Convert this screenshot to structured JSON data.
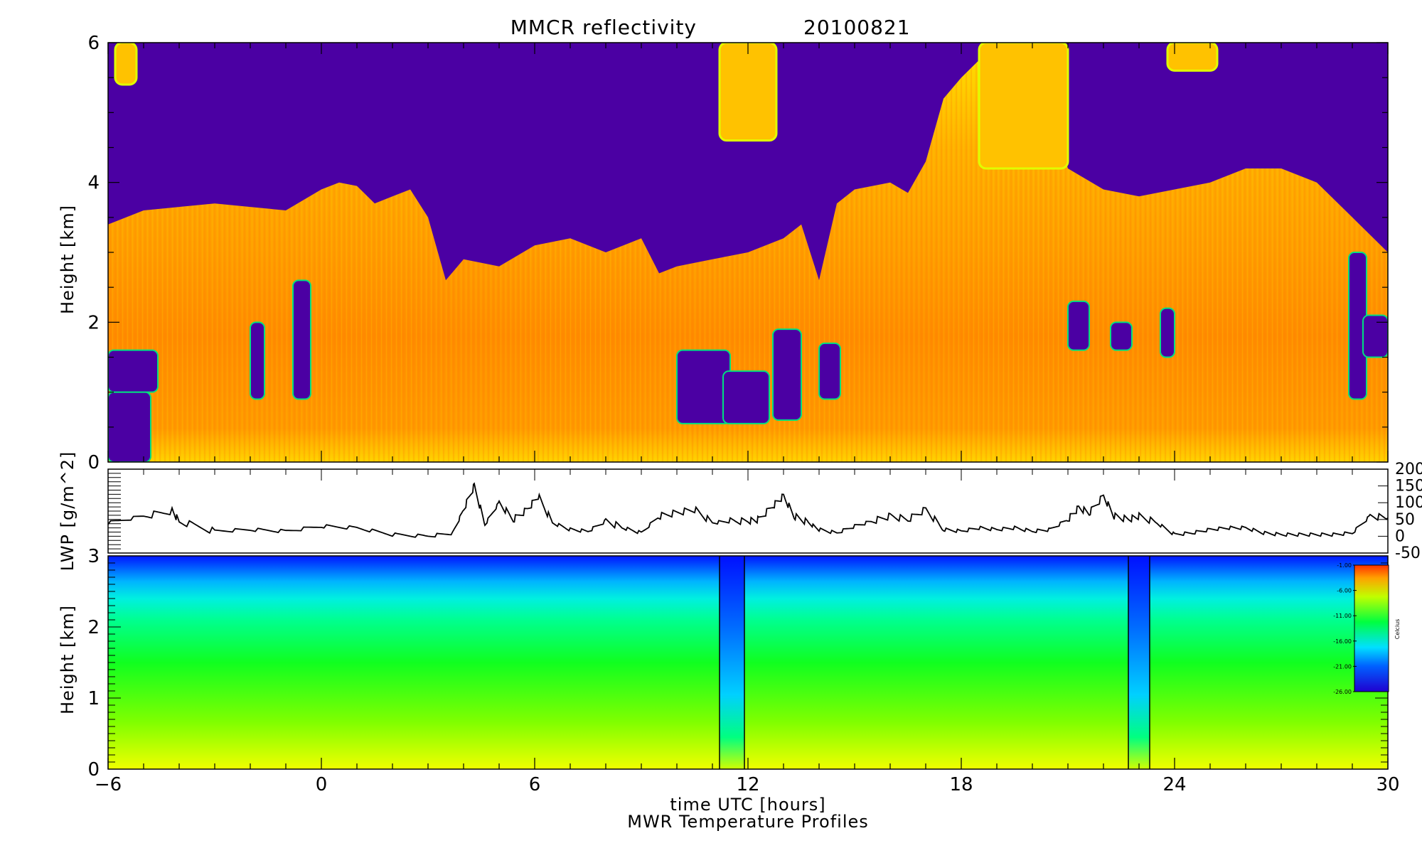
{
  "figure": {
    "title_left": "MMCR reflectivity",
    "title_right": "20100821",
    "x_axis_label": "time UTC [hours]",
    "bottom_caption": "MWR Temperature Profiles"
  },
  "colors": {
    "reflectivity_background": "#4b00a3",
    "temperature_cold": "#0014ff",
    "temperature_warm": "#f0ff00"
  },
  "chart_data": [
    {
      "type": "heatmap",
      "name": "reflectivity",
      "title": "MMCR reflectivity 20100821",
      "xlabel": "time UTC [hours]",
      "ylabel": "Height [km]",
      "xlim": [
        -6,
        30
      ],
      "ylim": [
        0,
        6
      ],
      "x_ticks": [
        -6,
        0,
        6,
        12,
        18,
        24,
        30
      ],
      "y_ticks": [
        0,
        2,
        4,
        6
      ],
      "cloud_top_km": [
        [
          -6,
          3.4
        ],
        [
          -5,
          3.6
        ],
        [
          -4,
          3.65
        ],
        [
          -3,
          3.7
        ],
        [
          -2,
          3.65
        ],
        [
          -1,
          3.6
        ],
        [
          0,
          3.9
        ],
        [
          0.5,
          4.0
        ],
        [
          1,
          3.95
        ],
        [
          1.5,
          3.7
        ],
        [
          2,
          3.8
        ],
        [
          2.5,
          3.9
        ],
        [
          3,
          3.5
        ],
        [
          3.5,
          2.6
        ],
        [
          4,
          2.9
        ],
        [
          5,
          2.8
        ],
        [
          6,
          3.1
        ],
        [
          7,
          3.2
        ],
        [
          8,
          3.0
        ],
        [
          9,
          3.2
        ],
        [
          9.5,
          2.7
        ],
        [
          10,
          2.8
        ],
        [
          11,
          2.9
        ],
        [
          12,
          3.0
        ],
        [
          13,
          3.2
        ],
        [
          13.5,
          3.4
        ],
        [
          14,
          2.6
        ],
        [
          14.5,
          3.7
        ],
        [
          15,
          3.9
        ],
        [
          16,
          4.0
        ],
        [
          16.5,
          3.85
        ],
        [
          17,
          4.3
        ],
        [
          17.5,
          5.2
        ],
        [
          18,
          5.5
        ],
        [
          19,
          6.0
        ],
        [
          20,
          6.0
        ],
        [
          20.5,
          5.0
        ],
        [
          21,
          4.2
        ],
        [
          22,
          3.9
        ],
        [
          23,
          3.8
        ],
        [
          24,
          3.9
        ],
        [
          25,
          4.0
        ],
        [
          26,
          4.2
        ],
        [
          27,
          4.2
        ],
        [
          28,
          4.0
        ],
        [
          29,
          3.5
        ],
        [
          30,
          3.0
        ]
      ],
      "color_order": [
        "purple",
        "blue",
        "cyan",
        "green",
        "yellow",
        "orange",
        "red"
      ]
    },
    {
      "type": "line",
      "name": "lwp",
      "ylabel": "LWP [g/m^2]",
      "xlim": [
        -6,
        30
      ],
      "ylim": [
        -50,
        200
      ],
      "y_ticks": [
        -50,
        0,
        50,
        100,
        150,
        200
      ],
      "x": [
        -6,
        -5,
        -4.2,
        -4,
        -3,
        -2,
        -1,
        0,
        1,
        2,
        3,
        3.7,
        4,
        4.3,
        4.6,
        5,
        5.4,
        5.8,
        6.1,
        6.5,
        7,
        7.5,
        8,
        8.5,
        9,
        9.5,
        10,
        10.5,
        11,
        11.5,
        12,
        12.3,
        12.7,
        13,
        13.3,
        13.7,
        14,
        14.5,
        15,
        15.5,
        16,
        16.5,
        17,
        17.5,
        18,
        18.5,
        19,
        19.5,
        20,
        20.5,
        21,
        21.3,
        21.6,
        22,
        22.3,
        22.7,
        23,
        23.5,
        24,
        24.5,
        25,
        25.5,
        26,
        26.5,
        27,
        27.5,
        28,
        28.5,
        29,
        29.5,
        30
      ],
      "y": [
        40,
        60,
        75,
        45,
        15,
        20,
        15,
        30,
        25,
        5,
        0,
        10,
        80,
        150,
        35,
        100,
        50,
        80,
        120,
        40,
        20,
        15,
        45,
        25,
        10,
        60,
        70,
        80,
        40,
        45,
        45,
        50,
        90,
        120,
        60,
        40,
        20,
        10,
        30,
        45,
        60,
        50,
        80,
        20,
        15,
        25,
        20,
        25,
        15,
        20,
        50,
        85,
        70,
        120,
        60,
        50,
        60,
        40,
        5,
        10,
        20,
        25,
        25,
        10,
        5,
        5,
        5,
        5,
        10,
        60,
        55
      ]
    },
    {
      "type": "heatmap",
      "name": "mwr_temperature",
      "ylabel": "Height [km]",
      "xlim": [
        -6,
        30
      ],
      "ylim": [
        0,
        3
      ],
      "y_ticks": [
        0,
        1,
        2,
        3
      ],
      "colorbar_label": "Celcius",
      "colorbar_ticks": [
        "-1.00",
        "-6.00",
        "-11.00",
        "-16.00",
        "-21.00",
        "-26.00"
      ],
      "gaps_utc": [
        [
          11.2,
          11.9
        ],
        [
          22.7,
          23.3
        ]
      ]
    }
  ]
}
